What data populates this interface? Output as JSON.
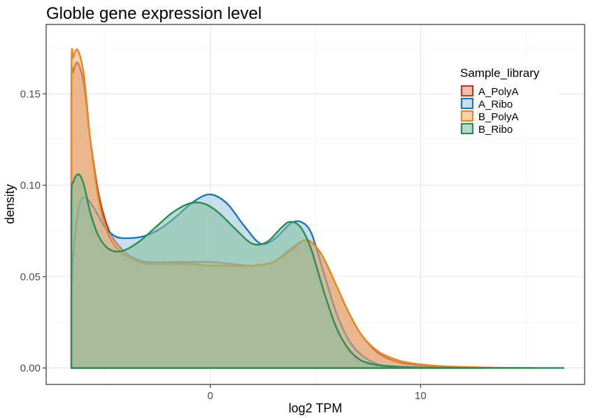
{
  "chart_data": {
    "type": "area",
    "title": "Globle gene expression level",
    "xlabel": "log2 TPM",
    "ylabel": "density",
    "xlim": [
      -7.8,
      17.8
    ],
    "ylim": [
      -0.009,
      0.188
    ],
    "x_ticks": [
      0,
      10
    ],
    "x_tick_labels": [
      "0",
      "10"
    ],
    "y_ticks": [
      0.0,
      0.05,
      0.1,
      0.15
    ],
    "y_tick_labels": [
      "0.00",
      "0.05",
      "0.10",
      "0.15"
    ],
    "grid": true,
    "legend": {
      "title": "Sample_library",
      "position": "top-right"
    },
    "series": [
      {
        "name": "A_PolyA",
        "line_color": "#C0392B",
        "fill_color": "#D98C6E",
        "x": [
          -6.6,
          -6.6,
          -6.5,
          -6.3,
          -6.0,
          -5.7,
          -5.3,
          -4.8,
          -4.2,
          -3.6,
          -3.0,
          -2.0,
          -1.0,
          0.0,
          1.0,
          2.0,
          3.0,
          3.8,
          4.6,
          5.3,
          6.0,
          6.6,
          7.2,
          8.0,
          9.0,
          10.0,
          11.0,
          12.0
        ],
        "density": [
          0.0,
          0.15,
          0.162,
          0.167,
          0.155,
          0.125,
          0.095,
          0.075,
          0.065,
          0.06,
          0.058,
          0.058,
          0.058,
          0.058,
          0.057,
          0.056,
          0.058,
          0.065,
          0.07,
          0.062,
          0.045,
          0.03,
          0.018,
          0.008,
          0.003,
          0.0015,
          0.0005,
          0.0
        ]
      },
      {
        "name": "A_Ribo",
        "line_color": "#1F77B4",
        "fill_color": "#9CC3DD",
        "x": [
          -6.6,
          -6.6,
          -6.45,
          -6.2,
          -5.9,
          -5.5,
          -5.0,
          -4.5,
          -4.0,
          -3.2,
          -2.4,
          -1.6,
          -0.8,
          0.0,
          0.8,
          1.6,
          2.4,
          3.1,
          3.8,
          4.3,
          4.8,
          5.4,
          6.0,
          6.6,
          7.2,
          8.0,
          9.0,
          10.0,
          11.0,
          12.0,
          13.0
        ],
        "density": [
          0.0,
          0.04,
          0.07,
          0.09,
          0.093,
          0.087,
          0.077,
          0.072,
          0.071,
          0.072,
          0.076,
          0.083,
          0.091,
          0.095,
          0.09,
          0.078,
          0.068,
          0.071,
          0.079,
          0.08,
          0.074,
          0.052,
          0.03,
          0.015,
          0.007,
          0.002,
          0.0008,
          0.0003,
          0.0001,
          5e-05,
          0.0
        ]
      },
      {
        "name": "B_PolyA",
        "line_color": "#E08A2A",
        "fill_color": "#EAAE6F",
        "x": [
          -6.6,
          -6.6,
          -6.5,
          -6.3,
          -6.0,
          -5.7,
          -5.3,
          -4.8,
          -4.2,
          -3.6,
          -3.0,
          -2.0,
          -1.0,
          0.0,
          1.0,
          2.0,
          3.0,
          3.8,
          4.6,
          5.3,
          6.0,
          6.6,
          7.2,
          8.0,
          9.0,
          10.0,
          11.0,
          12.0,
          13.0,
          14.0,
          15.5
        ],
        "density": [
          0.0,
          0.16,
          0.17,
          0.174,
          0.16,
          0.125,
          0.092,
          0.072,
          0.063,
          0.059,
          0.057,
          0.057,
          0.057,
          0.056,
          0.056,
          0.056,
          0.058,
          0.064,
          0.07,
          0.062,
          0.045,
          0.03,
          0.018,
          0.009,
          0.004,
          0.002,
          0.001,
          0.0006,
          0.0003,
          0.0001,
          0.0
        ]
      },
      {
        "name": "B_Ribo",
        "line_color": "#2E8B57",
        "fill_color": "#7FBF9F",
        "x": [
          -6.6,
          -6.6,
          -6.5,
          -6.25,
          -6.0,
          -5.7,
          -5.3,
          -4.8,
          -4.2,
          -3.4,
          -2.6,
          -1.8,
          -1.0,
          -0.3,
          0.4,
          1.2,
          2.0,
          2.7,
          3.4,
          3.8,
          4.3,
          4.8,
          5.4,
          6.0,
          6.6,
          7.2,
          8.0,
          9.0,
          10.0,
          11.0,
          12.5,
          14.0,
          15.5,
          16.8
        ],
        "density": [
          0.0,
          0.09,
          0.102,
          0.106,
          0.1,
          0.085,
          0.072,
          0.065,
          0.064,
          0.069,
          0.077,
          0.085,
          0.09,
          0.09,
          0.085,
          0.076,
          0.068,
          0.069,
          0.077,
          0.08,
          0.077,
          0.065,
          0.042,
          0.022,
          0.01,
          0.004,
          0.0015,
          0.0006,
          0.0003,
          0.0002,
          0.0001,
          5e-05,
          2e-05,
          0.0
        ]
      }
    ]
  }
}
